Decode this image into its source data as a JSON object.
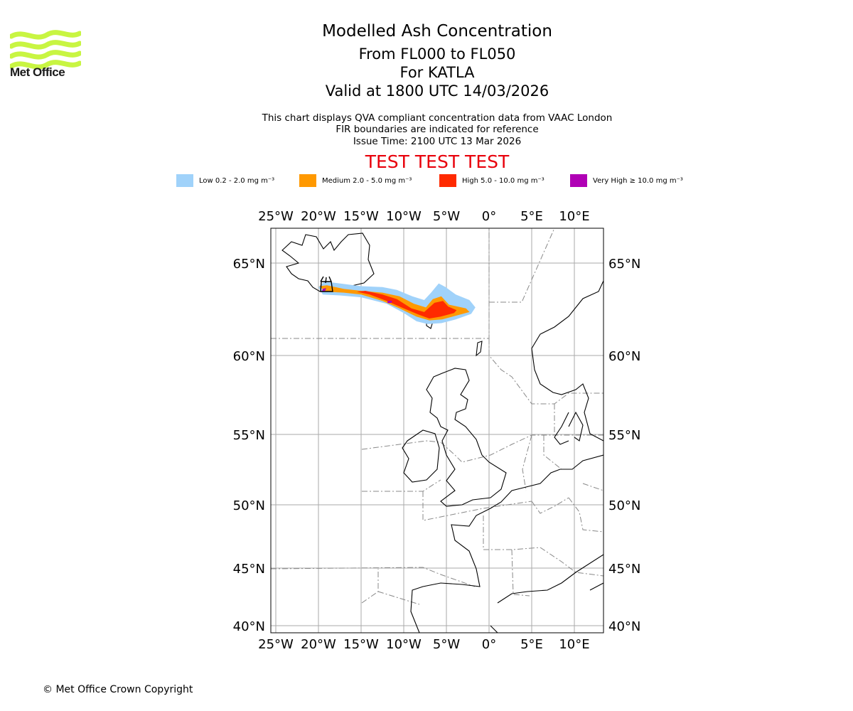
{
  "logo": {
    "name": "Met Office",
    "color": "#c8f542"
  },
  "titles": {
    "main": "Modelled Ash Concentration",
    "levels": "From FL000 to FL050",
    "volcano": "For KATLA",
    "valid": "Valid at 1800 UTC 14/03/2026"
  },
  "subtitles": {
    "line1": "This chart displays QVA compliant concentration data from VAAC London",
    "line2": "FIR boundaries are indicated for reference",
    "line3": "Issue Time: 2100 UTC 13 Mar 2026"
  },
  "test_banner": "TEST TEST TEST",
  "legend": [
    {
      "label": "Low 0.2 - 2.0 mg m⁻³",
      "color": "#a0d2fa"
    },
    {
      "label": "Medium 2.0 - 5.0 mg m⁻³",
      "color": "#ff9900"
    },
    {
      "label": "High 5.0 - 10.0 mg m⁻³",
      "color": "#ff2a00"
    },
    {
      "label": "Very High  ≥  10.0 mg m⁻³",
      "color": "#b000b5"
    }
  ],
  "map": {
    "lon_range": [
      -25.5,
      13.5
    ],
    "lat_range": [
      39.5,
      67.5
    ],
    "lon_ticks": [
      {
        "value": -25,
        "label": "25°W"
      },
      {
        "value": -20,
        "label": "20°W"
      },
      {
        "value": -15,
        "label": "15°W"
      },
      {
        "value": -10,
        "label": "10°W"
      },
      {
        "value": -5,
        "label": "5°W"
      },
      {
        "value": 0,
        "label": "0°"
      },
      {
        "value": 5,
        "label": "5°E"
      },
      {
        "value": 10,
        "label": "10°E"
      }
    ],
    "lat_ticks": [
      {
        "value": 40,
        "label": "40°N"
      },
      {
        "value": 45,
        "label": "45°N"
      },
      {
        "value": 50,
        "label": "50°N"
      },
      {
        "value": 55,
        "label": "55°N"
      },
      {
        "value": 60,
        "label": "60°N"
      },
      {
        "value": 65,
        "label": "65°N"
      }
    ],
    "grid": true,
    "ash_plume": {
      "low": [
        [
          -20.0,
          63.7
        ],
        [
          -19.3,
          64.0
        ],
        [
          -17.5,
          63.9
        ],
        [
          -15.0,
          63.75
        ],
        [
          -12.5,
          63.7
        ],
        [
          -10.8,
          63.55
        ],
        [
          -9.0,
          63.2
        ],
        [
          -7.6,
          63.0
        ],
        [
          -6.8,
          63.4
        ],
        [
          -5.9,
          63.9
        ],
        [
          -5.1,
          63.7
        ],
        [
          -3.9,
          63.3
        ],
        [
          -2.3,
          63.0
        ],
        [
          -1.6,
          62.6
        ],
        [
          -2.1,
          62.25
        ],
        [
          -3.9,
          61.95
        ],
        [
          -5.6,
          61.75
        ],
        [
          -7.2,
          61.7
        ],
        [
          -8.5,
          61.85
        ],
        [
          -10.0,
          62.3
        ],
        [
          -12.0,
          62.8
        ],
        [
          -15.0,
          63.15
        ],
        [
          -17.5,
          63.25
        ],
        [
          -19.5,
          63.3
        ]
      ],
      "medium": [
        [
          -19.9,
          63.75
        ],
        [
          -19.0,
          63.8
        ],
        [
          -17.0,
          63.6
        ],
        [
          -15.0,
          63.5
        ],
        [
          -12.5,
          63.4
        ],
        [
          -10.5,
          63.2
        ],
        [
          -8.8,
          62.8
        ],
        [
          -7.4,
          62.6
        ],
        [
          -6.6,
          63.05
        ],
        [
          -5.6,
          63.2
        ],
        [
          -4.7,
          62.75
        ],
        [
          -2.7,
          62.55
        ],
        [
          -2.3,
          62.35
        ],
        [
          -3.5,
          62.2
        ],
        [
          -5.5,
          61.95
        ],
        [
          -7.0,
          61.9
        ],
        [
          -8.5,
          62.1
        ],
        [
          -10.5,
          62.55
        ],
        [
          -12.5,
          62.95
        ],
        [
          -15.0,
          63.3
        ],
        [
          -17.0,
          63.4
        ],
        [
          -19.2,
          63.45
        ]
      ],
      "high": [
        [
          -15.5,
          63.45
        ],
        [
          -14.5,
          63.5
        ],
        [
          -12.5,
          63.3
        ],
        [
          -10.8,
          63.05
        ],
        [
          -9.1,
          62.55
        ],
        [
          -7.6,
          62.35
        ],
        [
          -6.4,
          62.85
        ],
        [
          -5.4,
          62.95
        ],
        [
          -4.8,
          62.65
        ],
        [
          -3.8,
          62.45
        ],
        [
          -4.1,
          62.3
        ],
        [
          -5.7,
          62.1
        ],
        [
          -7.0,
          62.0
        ],
        [
          -8.2,
          62.2
        ],
        [
          -10.0,
          62.55
        ],
        [
          -12.0,
          62.95
        ],
        [
          -14.0,
          63.3
        ]
      ],
      "very_high": [
        [
          [
            -19.5,
            63.6
          ],
          [
            -19.1,
            63.65
          ],
          [
            -19.2,
            63.5
          ],
          [
            -19.6,
            63.45
          ]
        ],
        [
          [
            -11.9,
            62.95
          ],
          [
            -11.4,
            62.97
          ],
          [
            -11.4,
            62.85
          ],
          [
            -11.9,
            62.83
          ]
        ]
      ]
    }
  },
  "copyright": "© Met Office Crown Copyright"
}
